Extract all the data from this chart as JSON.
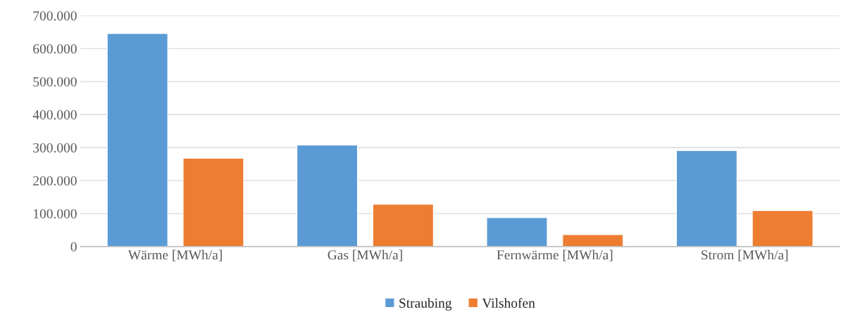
{
  "chart_data": {
    "type": "bar",
    "categories": [
      "Wärme [MWh/a]",
      "Gas [MWh/a]",
      "Fernwärme [MWh/a]",
      "Strom [MWh/a]"
    ],
    "series": [
      {
        "name": "Straubing",
        "color": "#5b9bd5",
        "values": [
          646000,
          308000,
          88000,
          291000
        ]
      },
      {
        "name": "Vilshofen",
        "color": "#ed7d31",
        "values": [
          268000,
          128000,
          36000,
          109000
        ]
      }
    ],
    "ylim": [
      0,
      700000
    ],
    "yticks": [
      0,
      {
        "value": 100000,
        "label": "100.000"
      },
      {
        "value": 200000,
        "label": "200.000"
      },
      {
        "value": 300000,
        "label": "300.000"
      },
      {
        "value": 400000,
        "label": "400.000"
      },
      {
        "value": 500000,
        "label": "500.000"
      },
      {
        "value": 600000,
        "label": "600.000"
      },
      {
        "value": 700000,
        "label": "700.000"
      }
    ],
    "grid": "y",
    "legend": "bottom"
  }
}
